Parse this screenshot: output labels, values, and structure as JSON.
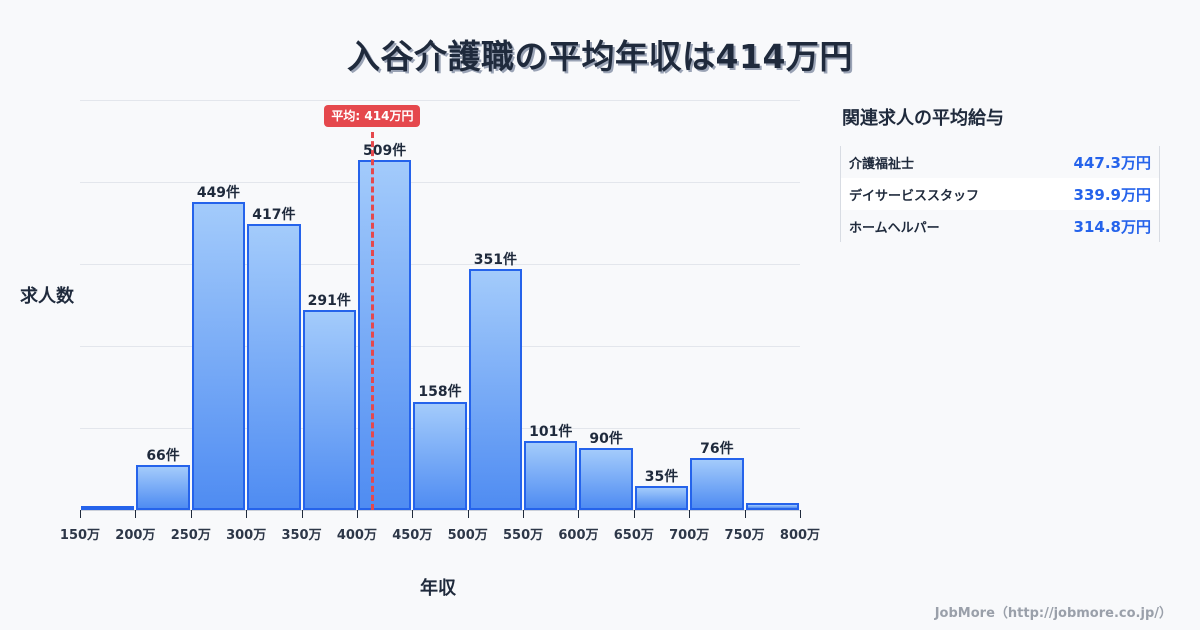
{
  "title": "入谷介護職の平均年収は414万円",
  "chart_data": {
    "type": "bar",
    "title": "入谷介護職の平均年収は414万円",
    "xlabel": "年収",
    "ylabel": "求人数",
    "categories": [
      "150-200万",
      "200-250万",
      "250-300万",
      "300-350万",
      "350-400万",
      "400-450万",
      "450-500万",
      "500-550万",
      "550-600万",
      "600-650万",
      "650-700万",
      "700-750万",
      "750-800万"
    ],
    "bin_edges": [
      150,
      200,
      250,
      300,
      350,
      400,
      450,
      500,
      550,
      600,
      650,
      700,
      750,
      800
    ],
    "values": [
      4,
      66,
      449,
      417,
      291,
      509,
      158,
      351,
      101,
      90,
      35,
      76,
      10
    ],
    "value_labels": [
      "",
      "66件",
      "449件",
      "417件",
      "291件",
      "509件",
      "158件",
      "351件",
      "101件",
      "90件",
      "35件",
      "76件",
      ""
    ],
    "x_tick_labels": [
      "150万",
      "200万",
      "250万",
      "300万",
      "350万",
      "400万",
      "450万",
      "500万",
      "550万",
      "600万",
      "650万",
      "700万",
      "750万",
      "800万"
    ],
    "ylim": [
      0,
      597
    ],
    "grid": true,
    "average": {
      "value": 414,
      "label": "平均: 414万円",
      "color": "#e5484d"
    },
    "bar_color": "#4f8cf2",
    "bar_border_color": "#2563eb"
  },
  "axes": {
    "xlabel": "年収",
    "ylabel": "求人数"
  },
  "sidebar": {
    "title": "関連求人の平均給与",
    "rows": [
      {
        "name": "介護福祉士",
        "value": "447.3万円"
      },
      {
        "name": "デイサービススタッフ",
        "value": "339.9万円"
      },
      {
        "name": "ホームヘルパー",
        "value": "314.8万円"
      }
    ]
  },
  "footer": "JobMore（http://jobmore.co.jp/）"
}
